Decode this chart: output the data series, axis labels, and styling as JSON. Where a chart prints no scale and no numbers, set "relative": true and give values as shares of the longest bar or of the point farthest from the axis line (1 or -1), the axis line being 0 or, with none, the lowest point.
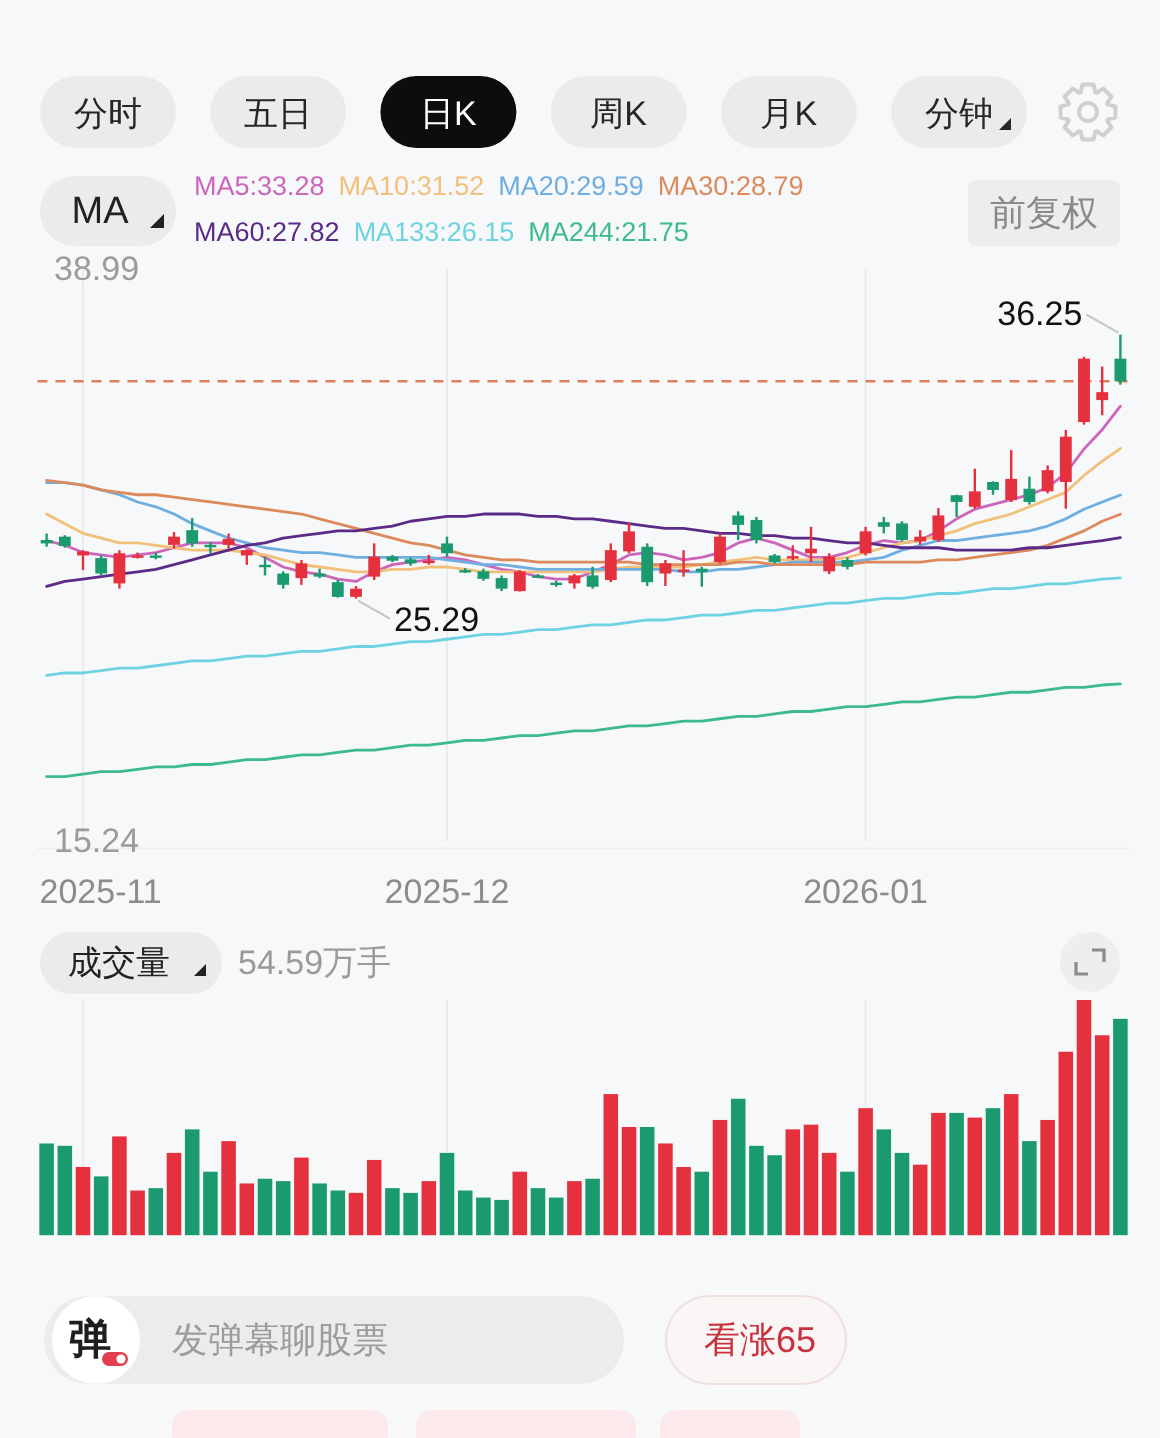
{
  "chart_data": [
    {
      "type": "other",
      "annotations": [
        "分时",
        "五日",
        "日K",
        "周K",
        "月K",
        "分钟"
      ]
    },
    {
      "type": "candlestick",
      "legend": "top",
      "legend_title": "MA",
      "grid": "x",
      "ylim": [
        15.24,
        38.99
      ],
      "yticks": [
        15.24,
        38.99
      ],
      "categories": [
        null,
        null,
        "2025-11",
        null,
        null,
        null,
        null,
        null,
        null,
        null,
        null,
        null,
        null,
        null,
        null,
        null,
        null,
        null,
        null,
        null,
        null,
        null,
        "2025-12",
        null,
        null,
        null,
        null,
        null,
        null,
        null,
        null,
        null,
        null,
        null,
        null,
        null,
        null,
        null,
        null,
        null,
        null,
        null,
        null,
        null,
        null,
        "2026-01",
        null,
        null,
        null,
        null,
        null,
        null,
        null,
        null,
        null,
        null,
        null,
        null,
        null,
        null
      ],
      "ohlc": [
        [
          27.72,
          27.99,
          27.44,
          27.58
        ],
        [
          27.86,
          27.92,
          27.4,
          27.47
        ],
        [
          27.08,
          27.3,
          26.47,
          27.25
        ],
        [
          26.97,
          27.08,
          26.25,
          26.33
        ],
        [
          25.92,
          27.3,
          25.7,
          27.17
        ],
        [
          27.03,
          27.2,
          26.95,
          27.08
        ],
        [
          27.08,
          27.2,
          26.92,
          27.03
        ],
        [
          27.52,
          28.05,
          27.36,
          27.86
        ],
        [
          28.13,
          28.63,
          27.44,
          27.58
        ],
        [
          27.52,
          27.64,
          27.17,
          27.44
        ],
        [
          27.52,
          27.99,
          27.36,
          27.77
        ],
        [
          27.08,
          27.33,
          26.69,
          27.3
        ],
        [
          26.69,
          27.03,
          26.25,
          26.61
        ],
        [
          26.33,
          26.42,
          25.7,
          25.86
        ],
        [
          26.14,
          26.89,
          25.86,
          26.75
        ],
        [
          26.33,
          26.53,
          26.14,
          26.2
        ],
        [
          25.97,
          26.06,
          25.33,
          25.36
        ],
        [
          25.36,
          25.81,
          25.29,
          25.7
        ],
        [
          26.2,
          27.58,
          26.06,
          27.03
        ],
        [
          27.03,
          27.1,
          26.8,
          26.86
        ],
        [
          26.92,
          27.0,
          26.65,
          26.75
        ],
        [
          26.8,
          27.1,
          26.7,
          26.86
        ],
        [
          27.58,
          27.86,
          27.03,
          27.17
        ],
        [
          26.47,
          26.55,
          26.35,
          26.42
        ],
        [
          26.42,
          26.53,
          26.03,
          26.11
        ],
        [
          26.14,
          26.25,
          25.6,
          25.7
        ],
        [
          25.6,
          26.47,
          25.58,
          26.42
        ],
        [
          26.25,
          26.31,
          26.14,
          26.22
        ],
        [
          25.95,
          26.03,
          25.78,
          25.92
        ],
        [
          25.92,
          26.31,
          25.7,
          26.25
        ],
        [
          26.25,
          26.61,
          25.7,
          25.78
        ],
        [
          26.06,
          27.58,
          25.97,
          27.3
        ],
        [
          27.25,
          28.46,
          27.17,
          28.08
        ],
        [
          27.44,
          27.58,
          25.81,
          25.97
        ],
        [
          26.33,
          26.89,
          25.81,
          26.75
        ],
        [
          26.42,
          27.3,
          26.2,
          26.5
        ],
        [
          26.53,
          26.61,
          25.78,
          26.4
        ],
        [
          26.8,
          27.99,
          26.75,
          27.86
        ],
        [
          28.74,
          28.91,
          27.72,
          28.35
        ],
        [
          28.55,
          28.68,
          27.58,
          27.72
        ],
        [
          27.08,
          27.14,
          26.75,
          26.8
        ],
        [
          27.0,
          27.5,
          26.89,
          27.05
        ],
        [
          27.17,
          28.27,
          26.8,
          27.36
        ],
        [
          26.42,
          27.17,
          26.31,
          27.03
        ],
        [
          26.89,
          27.0,
          26.5,
          26.61
        ],
        [
          27.17,
          28.27,
          27.08,
          28.08
        ],
        [
          28.46,
          28.68,
          28.0,
          28.27
        ],
        [
          28.41,
          28.5,
          27.66,
          27.72
        ],
        [
          27.66,
          28.13,
          27.52,
          27.86
        ],
        [
          27.72,
          29.05,
          27.64,
          28.74
        ],
        [
          29.58,
          29.6,
          28.68,
          29.3
        ],
        [
          29.1,
          30.68,
          29.02,
          29.74
        ],
        [
          30.13,
          30.16,
          29.6,
          29.8
        ],
        [
          29.38,
          31.45,
          29.3,
          30.26
        ],
        [
          29.85,
          30.35,
          29.19,
          29.3
        ],
        [
          29.74,
          30.82,
          29.66,
          30.62
        ],
        [
          30.13,
          32.29,
          29.02,
          32.01
        ],
        [
          32.62,
          35.33,
          32.51,
          35.25
        ],
        [
          33.53,
          34.92,
          32.9,
          33.86
        ],
        [
          35.25,
          36.25,
          34.17,
          34.31
        ]
      ],
      "colors": [
        "#1a9a6e",
        "#1a9a6e",
        "#e5303e",
        "#1a9a6e",
        "#e5303e",
        "#e5303e",
        "#1a9a6e",
        "#e5303e",
        "#1a9a6e",
        "#1a9a6e",
        "#e5303e",
        "#e5303e",
        "#1a9a6e",
        "#1a9a6e",
        "#e5303e",
        "#1a9a6e",
        "#1a9a6e",
        "#e5303e",
        "#e5303e",
        "#1a9a6e",
        "#1a9a6e",
        "#e5303e",
        "#1a9a6e",
        "#1a9a6e",
        "#1a9a6e",
        "#1a9a6e",
        "#e5303e",
        "#1a9a6e",
        "#1a9a6e",
        "#e5303e",
        "#1a9a6e",
        "#e5303e",
        "#e5303e",
        "#1a9a6e",
        "#e5303e",
        "#e5303e",
        "#1a9a6e",
        "#e5303e",
        "#1a9a6e",
        "#1a9a6e",
        "#1a9a6e",
        "#e5303e",
        "#e5303e",
        "#e5303e",
        "#1a9a6e",
        "#e5303e",
        "#1a9a6e",
        "#1a9a6e",
        "#e5303e",
        "#e5303e",
        "#1a9a6e",
        "#e5303e",
        "#1a9a6e",
        "#e5303e",
        "#1a9a6e",
        "#e5303e",
        "#e5303e",
        "#e5303e",
        "#e5303e",
        "#1a9a6e"
      ],
      "series": [
        {
          "type": "line",
          "name": "MA5:33.28",
          "color": "#cc66bb",
          "values": [
            27.7,
            27.5,
            27.2,
            27.1,
            27.0,
            27.1,
            27.2,
            27.4,
            27.6,
            27.6,
            27.6,
            27.4,
            27.0,
            26.6,
            26.4,
            26.3,
            26.1,
            26.0,
            26.4,
            26.7,
            26.8,
            26.9,
            27.0,
            26.9,
            26.7,
            26.5,
            26.4,
            26.2,
            26.1,
            26.1,
            26.4,
            26.7,
            27.1,
            27.2,
            27.1,
            26.9,
            27.0,
            27.2,
            27.6,
            27.8,
            27.6,
            27.3,
            27.0,
            27.0,
            27.2,
            27.5,
            27.7,
            27.6,
            27.7,
            28.1,
            28.6,
            29.0,
            29.2,
            29.4,
            29.6,
            29.9,
            30.5,
            31.5,
            32.3,
            33.28
          ]
        },
        {
          "type": "line",
          "name": "MA10:31.52",
          "color": "#f2c07a",
          "values": [
            28.8,
            28.4,
            28.0,
            27.8,
            27.6,
            27.6,
            27.5,
            27.4,
            27.3,
            27.3,
            27.3,
            27.2,
            27.1,
            26.9,
            26.7,
            26.6,
            26.5,
            26.4,
            26.4,
            26.5,
            26.5,
            26.6,
            26.6,
            26.5,
            26.4,
            26.4,
            26.4,
            26.4,
            26.4,
            26.4,
            26.4,
            26.5,
            26.6,
            26.6,
            26.6,
            26.6,
            26.7,
            26.8,
            26.9,
            27.0,
            26.9,
            26.9,
            26.9,
            26.9,
            27.0,
            27.2,
            27.4,
            27.6,
            27.7,
            27.9,
            28.1,
            28.4,
            28.6,
            28.8,
            29.1,
            29.4,
            29.7,
            30.4,
            31.0,
            31.52
          ]
        },
        {
          "type": "line",
          "name": "MA20:29.59",
          "color": "#6faee0",
          "values": [
            30.1,
            30.1,
            30.0,
            29.8,
            29.6,
            29.3,
            29.1,
            28.8,
            28.4,
            28.1,
            27.8,
            27.6,
            27.4,
            27.3,
            27.2,
            27.2,
            27.1,
            27.0,
            27.0,
            27.0,
            27.0,
            27.0,
            26.9,
            26.8,
            26.7,
            26.7,
            26.6,
            26.5,
            26.5,
            26.5,
            26.5,
            26.5,
            26.5,
            26.5,
            26.5,
            26.4,
            26.4,
            26.5,
            26.5,
            26.6,
            26.7,
            26.8,
            26.8,
            26.8,
            26.8,
            26.9,
            27.0,
            27.3,
            27.5,
            27.7,
            27.7,
            27.8,
            27.9,
            28.0,
            28.1,
            28.3,
            28.6,
            29.0,
            29.3,
            29.59
          ]
        },
        {
          "type": "line",
          "name": "MA30:28.79",
          "color": "#dc8a5c",
          "values": [
            30.2,
            30.1,
            30.0,
            29.8,
            29.7,
            29.6,
            29.6,
            29.5,
            29.4,
            29.3,
            29.2,
            29.1,
            29.0,
            28.9,
            28.8,
            28.6,
            28.4,
            28.2,
            28.0,
            27.8,
            27.6,
            27.5,
            27.3,
            27.1,
            27.0,
            26.9,
            26.9,
            26.8,
            26.8,
            26.8,
            26.8,
            26.8,
            26.8,
            26.7,
            26.7,
            26.7,
            26.7,
            26.7,
            26.8,
            26.8,
            26.7,
            26.7,
            26.7,
            26.7,
            26.7,
            26.8,
            26.8,
            26.8,
            26.8,
            26.9,
            26.9,
            27.0,
            27.1,
            27.2,
            27.3,
            27.5,
            27.8,
            28.1,
            28.5,
            28.79
          ]
        },
        {
          "type": "line",
          "name": "MA60:27.82",
          "color": "#5b2a86",
          "values": [
            25.8,
            26.0,
            26.1,
            26.2,
            26.3,
            26.4,
            26.5,
            26.7,
            26.9,
            27.1,
            27.3,
            27.5,
            27.6,
            27.8,
            27.9,
            28.0,
            28.1,
            28.1,
            28.2,
            28.3,
            28.5,
            28.6,
            28.7,
            28.7,
            28.8,
            28.8,
            28.8,
            28.7,
            28.7,
            28.6,
            28.6,
            28.5,
            28.4,
            28.3,
            28.2,
            28.2,
            28.1,
            28.0,
            28.0,
            27.9,
            27.9,
            27.8,
            27.8,
            27.7,
            27.6,
            27.6,
            27.5,
            27.4,
            27.4,
            27.4,
            27.3,
            27.3,
            27.3,
            27.3,
            27.4,
            27.4,
            27.5,
            27.6,
            27.7,
            27.82
          ]
        },
        {
          "type": "line",
          "name": "MA133:26.15",
          "color": "#6dd3e0",
          "values": [
            22.1,
            22.2,
            22.2,
            22.3,
            22.4,
            22.4,
            22.5,
            22.6,
            22.7,
            22.7,
            22.8,
            22.9,
            22.9,
            23.0,
            23.1,
            23.1,
            23.2,
            23.3,
            23.3,
            23.4,
            23.5,
            23.5,
            23.6,
            23.7,
            23.8,
            23.8,
            23.9,
            24.0,
            24.0,
            24.1,
            24.2,
            24.2,
            24.3,
            24.4,
            24.4,
            24.5,
            24.6,
            24.6,
            24.7,
            24.8,
            24.8,
            24.9,
            25.0,
            25.1,
            25.1,
            25.2,
            25.3,
            25.3,
            25.4,
            25.5,
            25.5,
            25.6,
            25.7,
            25.7,
            25.8,
            25.9,
            25.9,
            26.0,
            26.1,
            26.15
          ]
        },
        {
          "type": "line",
          "name": "MA244:21.75",
          "color": "#3dba8e",
          "values": [
            17.9,
            17.9,
            18.0,
            18.1,
            18.1,
            18.2,
            18.3,
            18.3,
            18.4,
            18.4,
            18.5,
            18.6,
            18.6,
            18.7,
            18.8,
            18.8,
            18.9,
            19.0,
            19.0,
            19.1,
            19.2,
            19.2,
            19.3,
            19.4,
            19.4,
            19.5,
            19.6,
            19.6,
            19.7,
            19.8,
            19.8,
            19.9,
            20.0,
            20.0,
            20.1,
            20.2,
            20.2,
            20.3,
            20.4,
            20.4,
            20.5,
            20.6,
            20.6,
            20.7,
            20.8,
            20.8,
            20.9,
            21.0,
            21.0,
            21.1,
            21.2,
            21.2,
            21.3,
            21.4,
            21.4,
            21.5,
            21.6,
            21.6,
            21.7,
            21.75
          ]
        }
      ],
      "ref_lines": [
        {
          "axis": "y",
          "value": 34.31,
          "color": "#e0805a",
          "line_style": "dashed"
        }
      ],
      "annotations": [
        "前复权",
        "36.25",
        "25.29"
      ]
    },
    {
      "type": "bar",
      "title": "成交量",
      "subtitle": "54.59万手",
      "relative": true,
      "grid": "x",
      "tick_labels": false,
      "categories": [
        null,
        null,
        "2025-11",
        null,
        null,
        null,
        null,
        null,
        null,
        null,
        null,
        null,
        null,
        null,
        null,
        null,
        null,
        null,
        null,
        null,
        null,
        null,
        "2025-12",
        null,
        null,
        null,
        null,
        null,
        null,
        null,
        null,
        null,
        null,
        null,
        null,
        null,
        null,
        null,
        null,
        null,
        null,
        null,
        null,
        null,
        null,
        "2026-01",
        null,
        null,
        null,
        null,
        null,
        null,
        null,
        null,
        null,
        null,
        null,
        null,
        null,
        null
      ],
      "values": [
        0.39,
        0.38,
        0.29,
        0.25,
        0.42,
        0.19,
        0.2,
        0.35,
        0.45,
        0.27,
        0.4,
        0.22,
        0.24,
        0.23,
        0.33,
        0.22,
        0.19,
        0.18,
        0.32,
        0.2,
        0.18,
        0.23,
        0.35,
        0.19,
        0.16,
        0.15,
        0.27,
        0.2,
        0.16,
        0.23,
        0.24,
        0.6,
        0.46,
        0.46,
        0.39,
        0.29,
        0.27,
        0.49,
        0.58,
        0.38,
        0.34,
        0.45,
        0.47,
        0.35,
        0.27,
        0.54,
        0.45,
        0.35,
        0.3,
        0.52,
        0.52,
        0.5,
        0.54,
        0.6,
        0.4,
        0.49,
        0.78,
        1,
        0.85,
        0.92
      ],
      "colors": [
        "#1a9a6e",
        "#1a9a6e",
        "#e5303e",
        "#1a9a6e",
        "#e5303e",
        "#e5303e",
        "#1a9a6e",
        "#e5303e",
        "#1a9a6e",
        "#1a9a6e",
        "#e5303e",
        "#e5303e",
        "#1a9a6e",
        "#1a9a6e",
        "#e5303e",
        "#1a9a6e",
        "#1a9a6e",
        "#e5303e",
        "#e5303e",
        "#1a9a6e",
        "#1a9a6e",
        "#e5303e",
        "#1a9a6e",
        "#1a9a6e",
        "#1a9a6e",
        "#1a9a6e",
        "#e5303e",
        "#1a9a6e",
        "#1a9a6e",
        "#e5303e",
        "#1a9a6e",
        "#e5303e",
        "#e5303e",
        "#1a9a6e",
        "#e5303e",
        "#e5303e",
        "#1a9a6e",
        "#e5303e",
        "#1a9a6e",
        "#1a9a6e",
        "#1a9a6e",
        "#e5303e",
        "#e5303e",
        "#e5303e",
        "#1a9a6e",
        "#e5303e",
        "#1a9a6e",
        "#1a9a6e",
        "#e5303e",
        "#e5303e",
        "#1a9a6e",
        "#e5303e",
        "#1a9a6e",
        "#e5303e",
        "#1a9a6e",
        "#e5303e",
        "#e5303e",
        "#e5303e",
        "#e5303e",
        "#1a9a6e"
      ]
    },
    {
      "type": "other",
      "annotations": [
        "弹",
        "发弹幕聊股票",
        "看涨65"
      ]
    }
  ]
}
